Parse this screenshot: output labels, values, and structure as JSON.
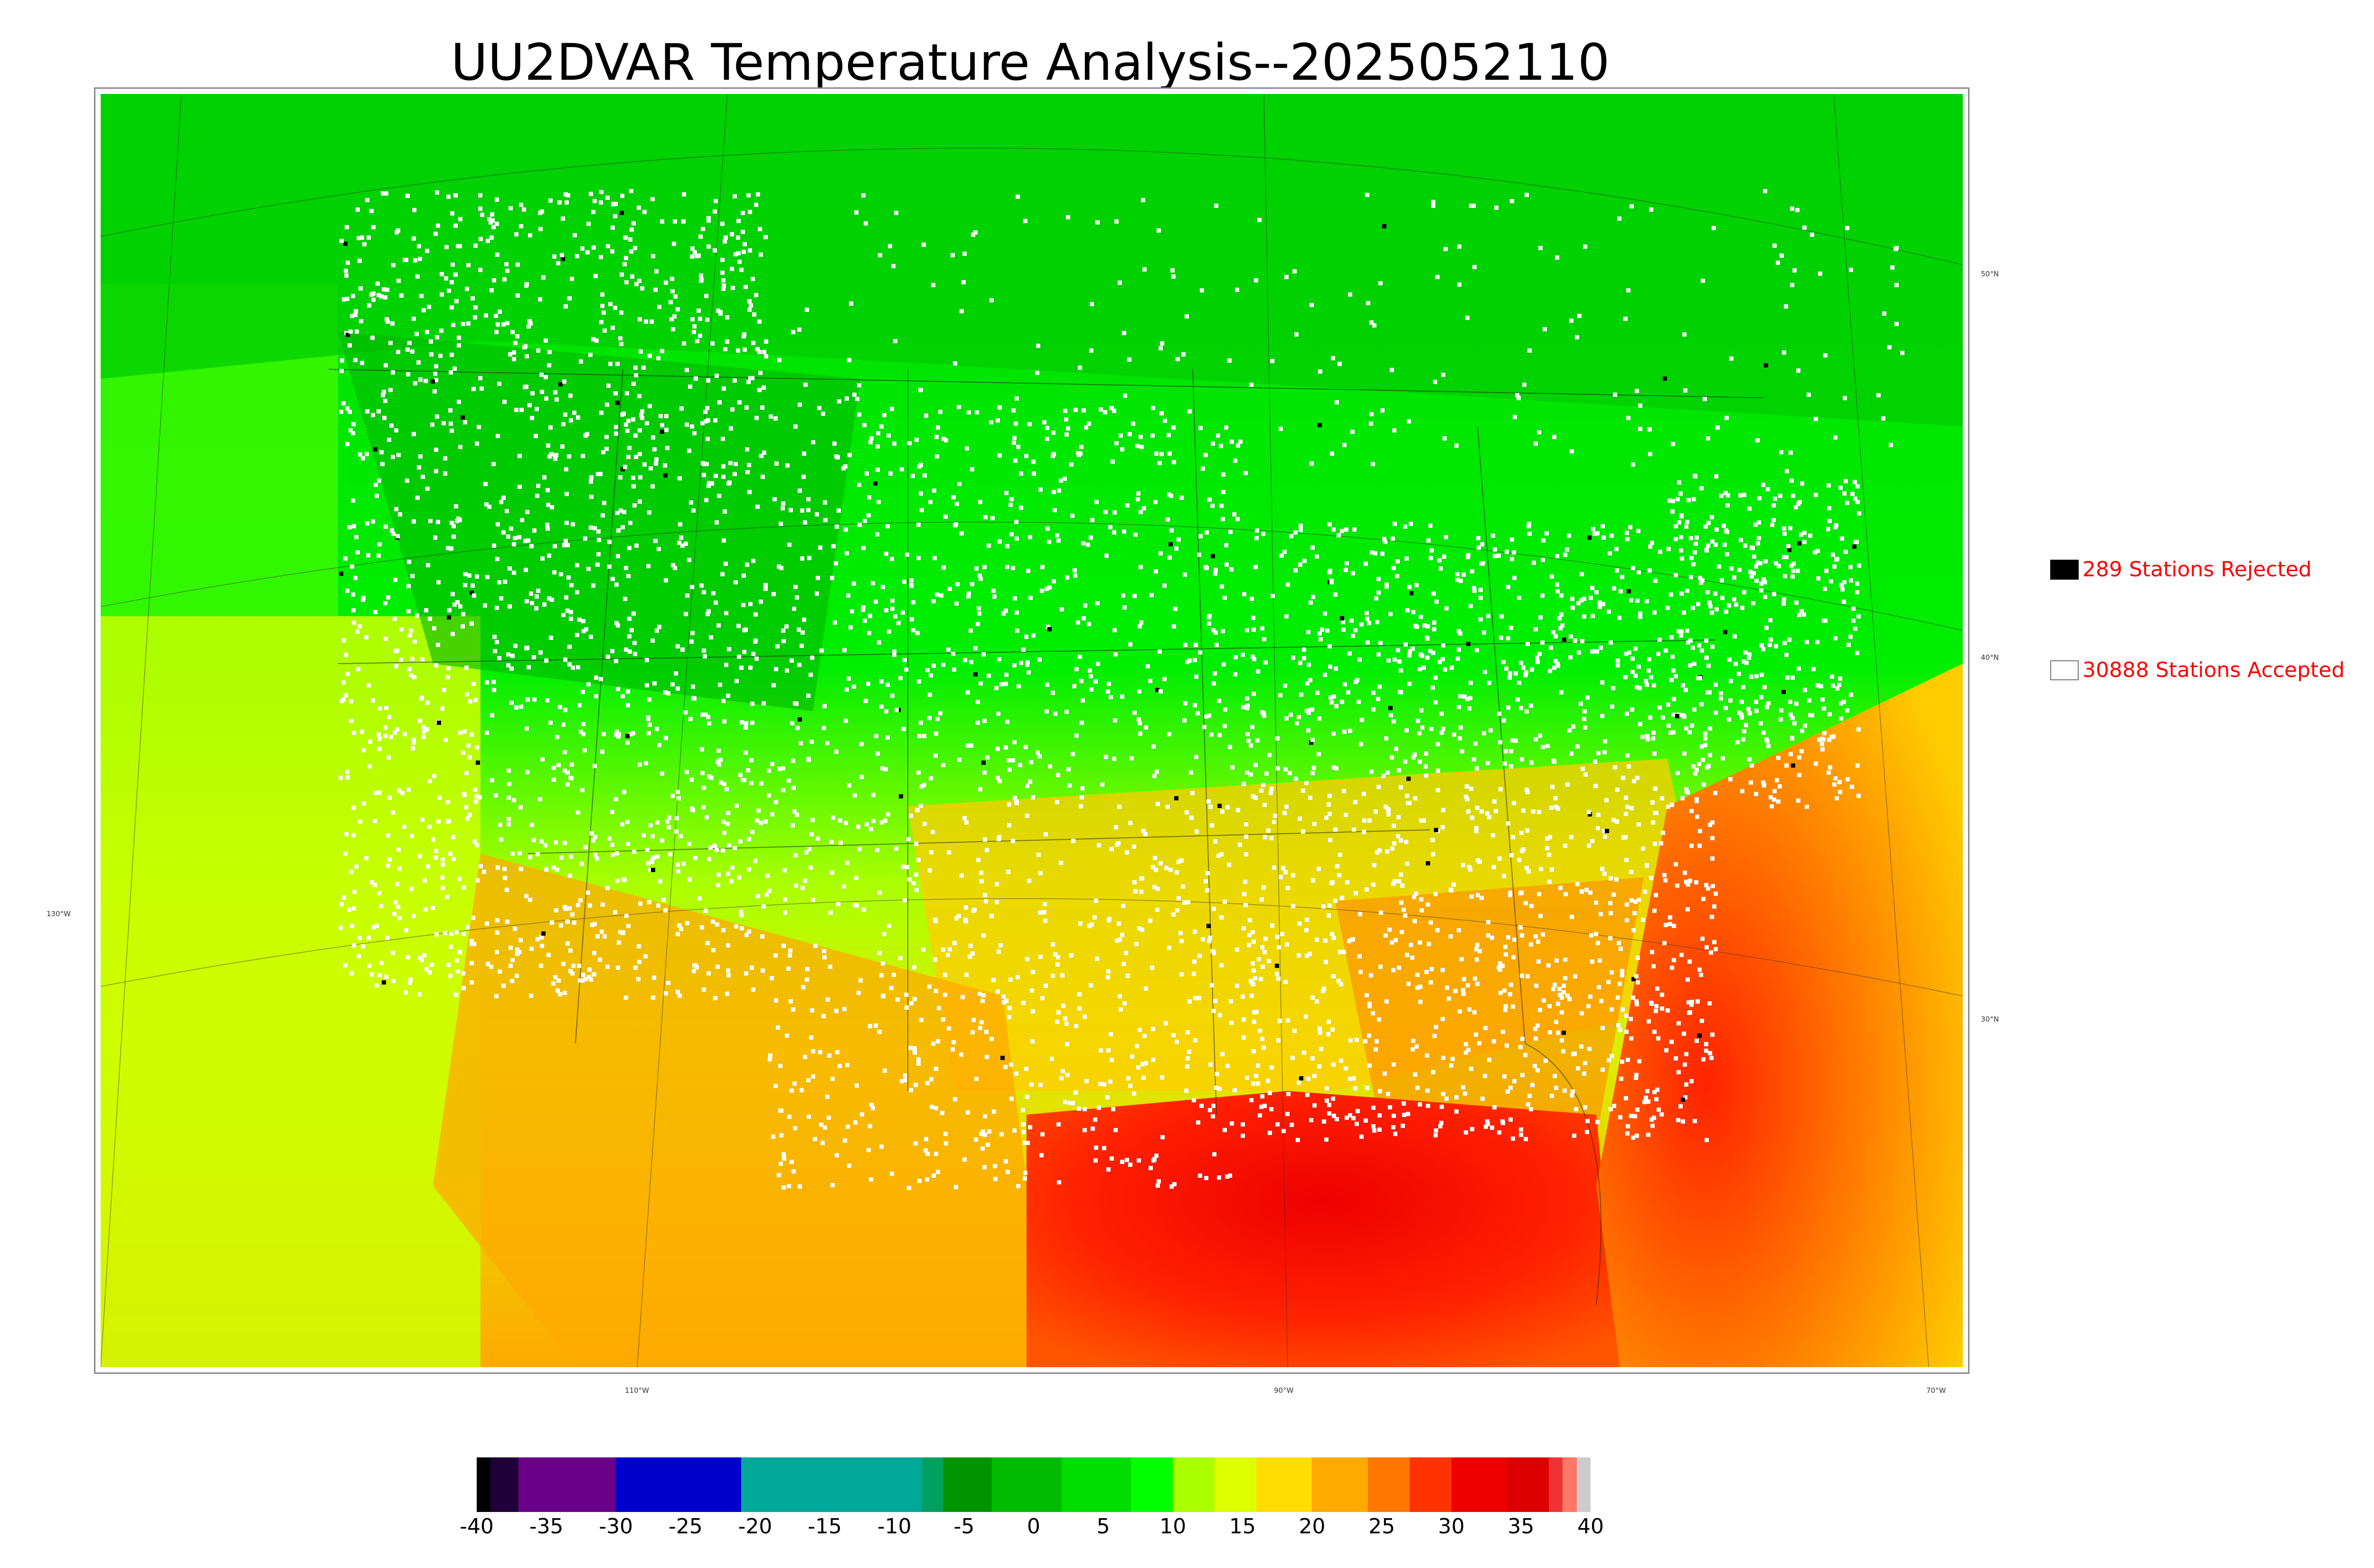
{
  "title": "UU2DVAR Temperature Analysis--2025052110",
  "legend": {
    "rejected": {
      "label": "289 Stations Rejected",
      "swatch_color": "#000000"
    },
    "accepted": {
      "label": "30888 Stations Accepted",
      "swatch_color": "#ffffff"
    }
  },
  "map": {
    "lon_labels": [
      "130°W",
      "110°W",
      "90°W",
      "70°W"
    ],
    "lat_labels": [
      "50°N",
      "40°N",
      "30°N"
    ],
    "ocean_colors": {
      "north": "#00dd00",
      "west": "#ccff00",
      "gulf": "#ee1100",
      "atlantic": "#ff7700"
    }
  },
  "colorbar": {
    "tick_labels": [
      "-40",
      "-35",
      "-30",
      "-25",
      "-20",
      "-15",
      "-10",
      "-5",
      "0",
      "5",
      "10",
      "15",
      "20",
      "25",
      "30",
      "35",
      "40"
    ],
    "range": [
      -40,
      40
    ],
    "segments": [
      {
        "from": -40,
        "to": -39,
        "color": "#000000"
      },
      {
        "from": -39,
        "to": -37,
        "color": "#200038"
      },
      {
        "from": -37,
        "to": -30,
        "color": "#6a0088"
      },
      {
        "from": -30,
        "to": -21,
        "color": "#0000cc"
      },
      {
        "from": -21,
        "to": -8,
        "color": "#00a899"
      },
      {
        "from": -8,
        "to": -6.5,
        "color": "#00a060"
      },
      {
        "from": -6.5,
        "to": -3,
        "color": "#009400"
      },
      {
        "from": -3,
        "to": 2,
        "color": "#00bb00"
      },
      {
        "from": 2,
        "to": 7,
        "color": "#00dd00"
      },
      {
        "from": 7,
        "to": 10,
        "color": "#00ff00"
      },
      {
        "from": 10,
        "to": 13,
        "color": "#aaff00"
      },
      {
        "from": 13,
        "to": 16,
        "color": "#ddff00"
      },
      {
        "from": 16,
        "to": 20,
        "color": "#ffdd00"
      },
      {
        "from": 20,
        "to": 24,
        "color": "#ffaa00"
      },
      {
        "from": 24,
        "to": 27,
        "color": "#ff7700"
      },
      {
        "from": 27,
        "to": 30,
        "color": "#ff3300"
      },
      {
        "from": 30,
        "to": 34,
        "color": "#ee0000"
      },
      {
        "from": 34,
        "to": 37,
        "color": "#dd0000"
      },
      {
        "from": 37,
        "to": 38,
        "color": "#ee3333"
      },
      {
        "from": 38,
        "to": 39,
        "color": "#ff7766"
      },
      {
        "from": 39,
        "to": 40,
        "color": "#cccccc"
      }
    ]
  }
}
